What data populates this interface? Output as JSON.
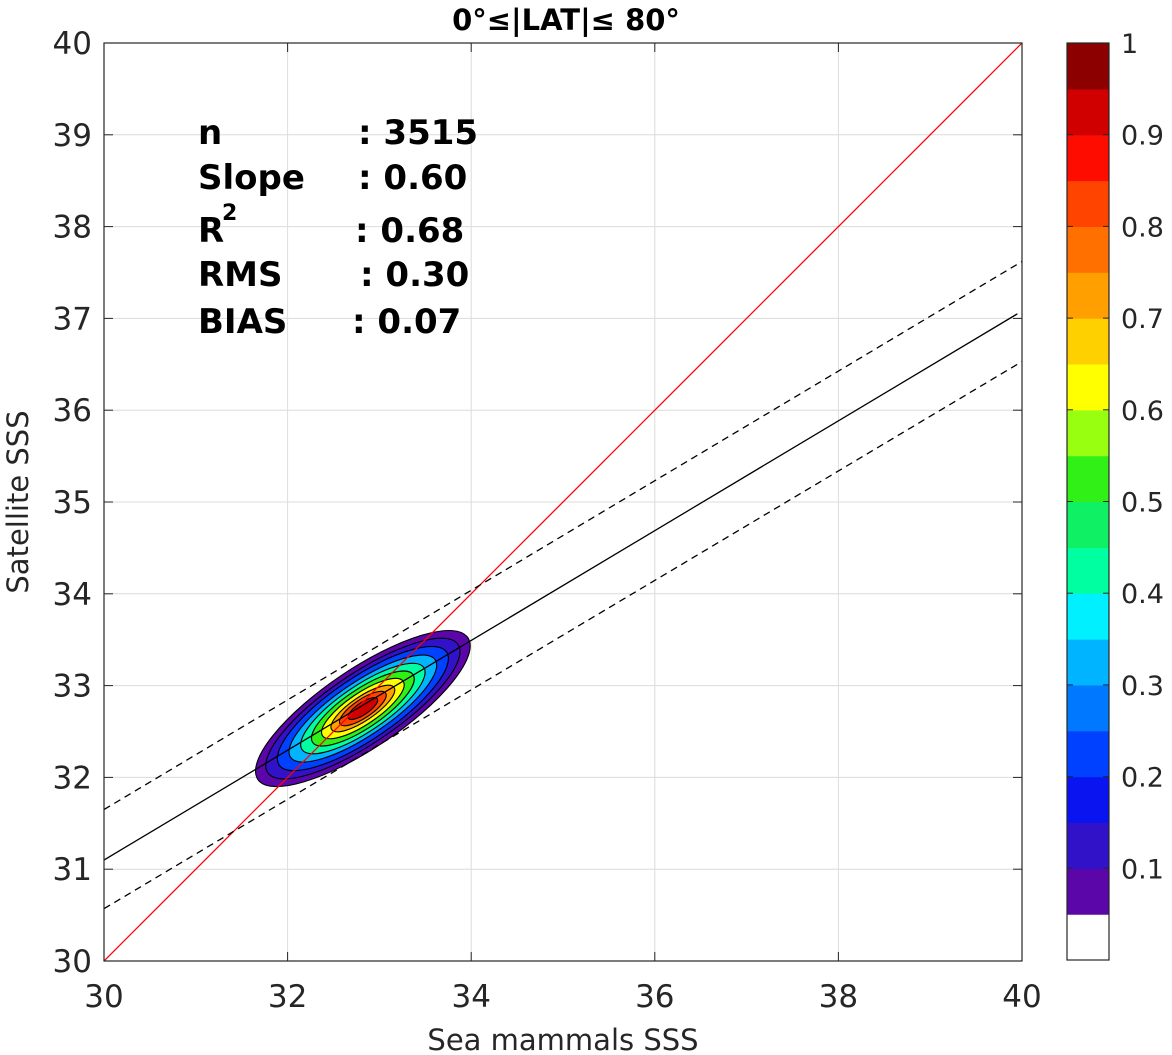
{
  "chart_data": {
    "type": "contour-density-scatter",
    "title": "0°≤|LAT|≤ 80°",
    "xlabel": "Sea mammals  SSS",
    "ylabel": "Satellite SSS",
    "xlim": [
      30,
      40
    ],
    "ylim": [
      30,
      40
    ],
    "xticks": [
      "30",
      "32",
      "34",
      "36",
      "38",
      "40"
    ],
    "yticks": [
      "30",
      "31",
      "32",
      "33",
      "34",
      "35",
      "36",
      "37",
      "38",
      "39",
      "40"
    ],
    "grid": true,
    "stats": [
      {
        "label": "n",
        "value": ": 3515",
        "sup": ""
      },
      {
        "label": "Slope",
        "value": ": 0.60",
        "sup": ""
      },
      {
        "label": "R",
        "value": ": 0.68",
        "sup": "2"
      },
      {
        "label": "RMS",
        "value": ": 0.30",
        "sup": ""
      },
      {
        "label": "BIAS",
        "value": ": 0.07",
        "sup": ""
      }
    ],
    "lines": [
      {
        "name": "one-to-one",
        "color": "#ff0000",
        "style": "solid",
        "x": [
          30,
          40
        ],
        "y": [
          30,
          40
        ]
      },
      {
        "name": "regression",
        "color": "#000000",
        "style": "solid",
        "x": [
          30,
          39.95
        ],
        "y": [
          31.1,
          37.05
        ]
      },
      {
        "name": "upper-bound",
        "color": "#000000",
        "style": "dashed",
        "x": [
          30,
          40
        ],
        "y": [
          31.65,
          37.62
        ]
      },
      {
        "name": "lower-bound",
        "color": "#000000",
        "style": "dashed",
        "x": [
          30,
          40
        ],
        "y": [
          30.57,
          36.53
        ]
      }
    ],
    "density": {
      "center": [
        32.82,
        32.75
      ],
      "orientation_deg": 34,
      "levels": [
        {
          "level": 0.05,
          "a": 1.38,
          "b": 0.43
        },
        {
          "level": 0.1,
          "a": 1.25,
          "b": 0.38
        },
        {
          "level": 0.2,
          "a": 1.1,
          "b": 0.34
        },
        {
          "level": 0.3,
          "a": 0.95,
          "b": 0.29
        },
        {
          "level": 0.4,
          "a": 0.8,
          "b": 0.25
        },
        {
          "level": 0.5,
          "a": 0.66,
          "b": 0.21
        },
        {
          "level": 0.6,
          "a": 0.53,
          "b": 0.17
        },
        {
          "level": 0.7,
          "a": 0.41,
          "b": 0.13
        },
        {
          "level": 0.8,
          "a": 0.3,
          "b": 0.1
        },
        {
          "level": 0.9,
          "a": 0.19,
          "b": 0.065
        }
      ]
    },
    "colorbar": {
      "ticks": [
        "0.1",
        "0.2",
        "0.3",
        "0.4",
        "0.5",
        "0.6",
        "0.7",
        "0.8",
        "0.9",
        "1"
      ],
      "colors": [
        "#ffffff",
        "#5a06a8",
        "#3212c8",
        "#0a14f0",
        "#0040ff",
        "#0078ff",
        "#00b4ff",
        "#00f0ff",
        "#00ffa0",
        "#10f064",
        "#30f018",
        "#98ff10",
        "#ffff00",
        "#ffd000",
        "#ffa000",
        "#ff7000",
        "#ff4400",
        "#ff0c00",
        "#d00000",
        "#8c0000"
      ]
    }
  }
}
